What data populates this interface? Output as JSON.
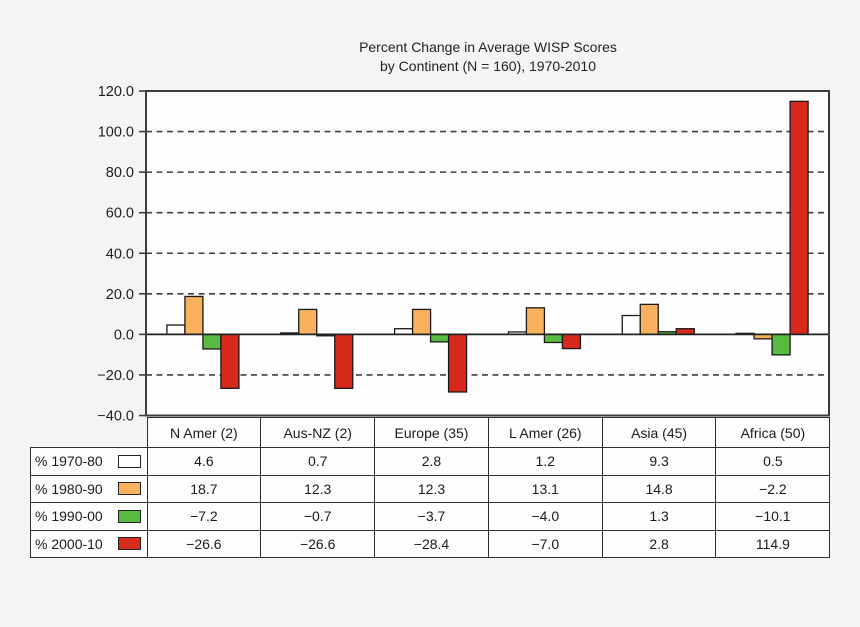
{
  "title": {
    "line1": "Percent Change in Average WISP Scores",
    "line2": "by Continent (N = 160), 1970-2010"
  },
  "chart_data": {
    "type": "bar",
    "title": "Percent Change in Average WISP Scores by Continent (N = 160), 1970-2010",
    "categories": [
      "N Amer (2)",
      "Aus-NZ (2)",
      "Europe (35)",
      "L Amer (26)",
      "Asia (45)",
      "Africa (50)"
    ],
    "series": [
      {
        "name": "% 1970-80",
        "color": "#ffffff",
        "values": [
          4.6,
          0.7,
          2.8,
          1.2,
          9.3,
          0.5
        ]
      },
      {
        "name": "% 1980-90",
        "color": "#f8b25e",
        "values": [
          18.7,
          12.3,
          12.3,
          13.1,
          14.8,
          -2.2
        ]
      },
      {
        "name": "% 1990-00",
        "color": "#58bc40",
        "values": [
          -7.2,
          -0.7,
          -3.7,
          -4.0,
          1.3,
          -10.1
        ]
      },
      {
        "name": "% 2000-10",
        "color": "#d8291d",
        "values": [
          -26.6,
          -26.6,
          -28.4,
          -7.0,
          2.8,
          114.9
        ]
      }
    ],
    "ylim": [
      -40,
      120
    ],
    "yticks": [
      120,
      100,
      80,
      60,
      40,
      20,
      0,
      -20,
      -40
    ],
    "ytick_labels": [
      "120.0",
      "100.0",
      "80.0",
      "60.0",
      "40.0",
      "20.0",
      "0.0",
      "−20.0",
      "−40.0"
    ],
    "grid": "dashed horizontal at 100, 80, 60, 40, 20, -20; solid zero line",
    "legend_position": "left column of data table",
    "xlabel": "",
    "ylabel": ""
  },
  "table": {
    "columns": [
      "N Amer (2)",
      "Aus-NZ (2)",
      "Europe (35)",
      "L Amer (26)",
      "Asia (45)",
      "Africa (50)"
    ],
    "rows": [
      {
        "label": "% 1970-80",
        "swatch": "#ffffff",
        "values": [
          "4.6",
          "0.7",
          "2.8",
          "1.2",
          "9.3",
          "0.5"
        ]
      },
      {
        "label": "% 1980-90",
        "swatch": "#f8b25e",
        "values": [
          "18.7",
          "12.3",
          "12.3",
          "13.1",
          "14.8",
          "−2.2"
        ]
      },
      {
        "label": "% 1990-00",
        "swatch": "#58bc40",
        "values": [
          "−7.2",
          "−0.7",
          "−3.7",
          "−4.0",
          "1.3",
          "−10.1"
        ]
      },
      {
        "label": "% 2000-10",
        "swatch": "#d8291d",
        "values": [
          "−26.6",
          "−26.6",
          "−28.4",
          "−7.0",
          "2.8",
          "114.9"
        ]
      }
    ]
  },
  "colors": {
    "background": "#f4f4f4",
    "plot_background": "#fdfdfd",
    "frame": "#3d3d3d",
    "gridline": "#3f3f3f",
    "bar_outline": "#1a1a1a",
    "text": "#1f1f1f"
  }
}
